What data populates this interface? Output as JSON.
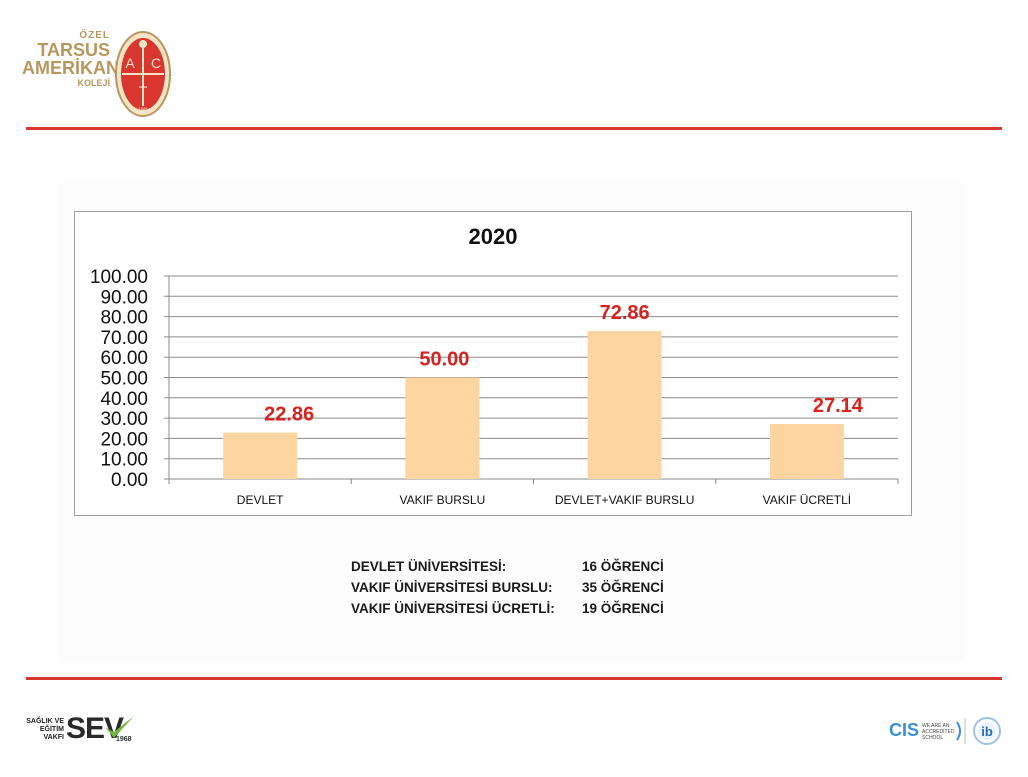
{
  "header": {
    "logo_lines": [
      "ÖZEL",
      "TARSUS",
      "AMERİKAN",
      "KOLEJİ"
    ],
    "emblem_letters": [
      "A",
      "C",
      "T"
    ],
    "emblem_year": "1888"
  },
  "chart_data": {
    "type": "bar",
    "title": "2020",
    "categories": [
      "DEVLET",
      "VAKIF BURSLU",
      "DEVLET+VAKIF BURSLU",
      "VAKIF ÜCRETLİ"
    ],
    "values": [
      22.86,
      50.0,
      72.86,
      27.14
    ],
    "data_labels": [
      "22.86",
      "50.00",
      "72.86",
      "27.14"
    ],
    "ylim": [
      0,
      100
    ],
    "yticks": [
      "0.00",
      "10.00",
      "20.00",
      "30.00",
      "40.00",
      "50.00",
      "60.00",
      "70.00",
      "80.00",
      "90.00",
      "100.00"
    ],
    "grid": true,
    "legend": "none",
    "bar_color": "#fcd5a0",
    "label_color": "#d7221e"
  },
  "stats": [
    {
      "label": "DEVLET ÜNİVERSİTESİ:",
      "value": "16 ÖĞRENCİ"
    },
    {
      "label": "VAKIF ÜNİVERSİTESİ BURSLU:",
      "value": "35 ÖĞRENCİ"
    },
    {
      "label": "VAKIF ÜNİVERSİTESİ ÜCRETLİ:",
      "value": "19 ÖĞRENCİ"
    }
  ],
  "footer": {
    "sev_small": [
      "SAĞLIK VE",
      "EĞİTİM",
      "VAKFI"
    ],
    "sev_name": "SEV",
    "sev_year": "1968",
    "cis_name": "CIS",
    "cis_small": [
      "WE ARE AN",
      "ACCREDITED",
      "SCHOOL"
    ],
    "ib_letters": "ib"
  },
  "colors": {
    "accent_red": "#d9362f",
    "logo_gold": "#b9965e"
  }
}
